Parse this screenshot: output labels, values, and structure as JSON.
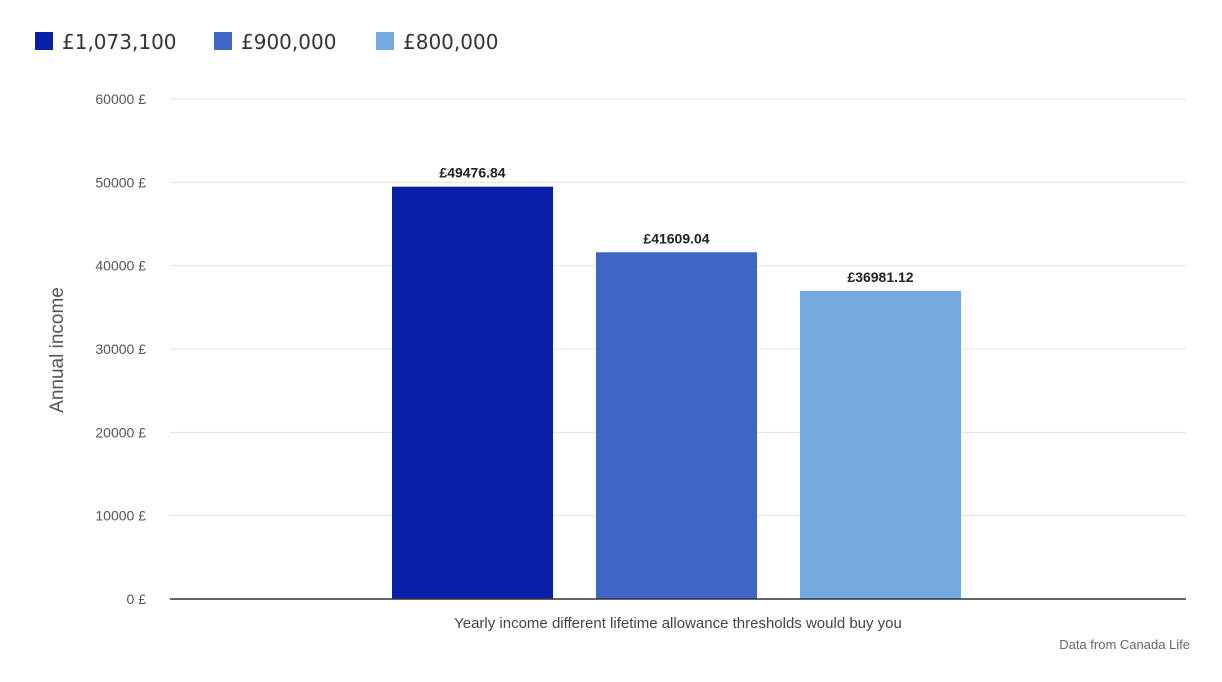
{
  "chart_data": {
    "type": "bar",
    "categories": [
      ""
    ],
    "series": [
      {
        "name": "£1,073,100",
        "values": [
          49476.84
        ],
        "label": "£49476.84",
        "color": "#0a1fa8"
      },
      {
        "name": "£900,000",
        "values": [
          41609.04
        ],
        "label": "£41609.04",
        "color": "#3f66c4"
      },
      {
        "name": "£800,000",
        "values": [
          36981.12
        ],
        "label": "£36981.12",
        "color": "#75a8de"
      }
    ],
    "ylabel": "Annual income",
    "xlabel": "Yearly income different lifetime allowance thresholds would buy you",
    "ylim": [
      0,
      60000
    ],
    "yticks": [
      0,
      10000,
      20000,
      30000,
      40000,
      50000,
      60000
    ],
    "ytick_labels": [
      "0 £",
      "10000 £",
      "20000 £",
      "30000 £",
      "40000 £",
      "50000 £",
      "60000 £"
    ],
    "grid": true,
    "legend_position": "top-left",
    "source": "Data from Canada Life"
  }
}
